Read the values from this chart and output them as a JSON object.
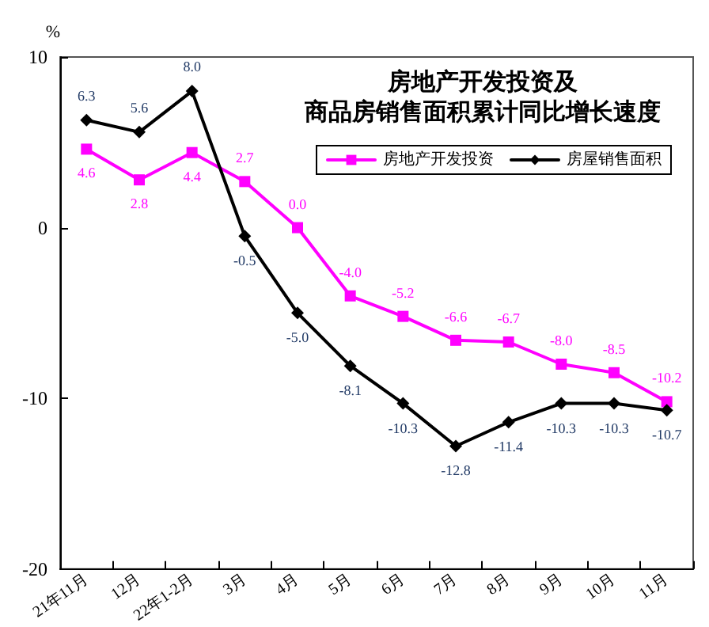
{
  "chart_data": {
    "type": "line",
    "title": "房地产开发投资及商品房销售面积累计同比增长速度",
    "ylabel": "%",
    "categories": [
      "21年11月",
      "12月",
      "22年1-2月",
      "3月",
      "4月",
      "5月",
      "6月",
      "7月",
      "8月",
      "9月",
      "10月",
      "11月"
    ],
    "series": [
      {
        "name": "房地产开发投资",
        "color": "#ff00ff",
        "marker": "square",
        "values": [
          4.6,
          2.8,
          4.4,
          2.7,
          0.0,
          -4.0,
          -5.2,
          -6.6,
          -6.7,
          -8.0,
          -8.5,
          -10.2
        ],
        "value_labels": [
          "4.6",
          "2.8",
          "4.4",
          "2.7",
          "0.0",
          "-4.0",
          "-5.2",
          "-6.6",
          "-6.7",
          "-8.0",
          "-8.5",
          "-10.2"
        ]
      },
      {
        "name": "房屋销售面积",
        "color": "#000000",
        "marker": "diamond",
        "values": [
          6.3,
          5.6,
          8.0,
          -0.5,
          -5.0,
          -8.1,
          -10.3,
          -12.8,
          -11.4,
          -10.3,
          -10.3,
          -10.7
        ],
        "value_labels": [
          "6.3",
          "5.6",
          "8.0",
          "-0.5",
          "-5.0",
          "-8.1",
          "-10.3",
          "-12.8",
          "-11.4",
          "-10.3",
          "-10.3",
          "-10.7"
        ]
      }
    ],
    "ylim": [
      -20,
      10
    ],
    "yticks": [
      -20,
      -10,
      0,
      10
    ],
    "grid": false,
    "legend": "top right",
    "line_style": "solid"
  }
}
